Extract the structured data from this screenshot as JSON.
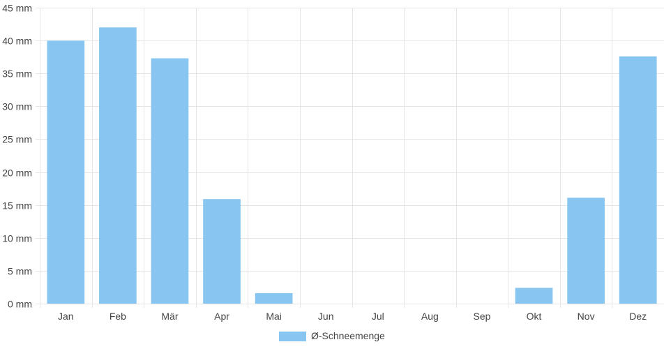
{
  "chart_data": {
    "type": "bar",
    "title": "",
    "xlabel": "",
    "ylabel": "",
    "unit": "mm",
    "categories": [
      "Jan",
      "Feb",
      "Mär",
      "Apr",
      "Mai",
      "Jun",
      "Jul",
      "Aug",
      "Sep",
      "Okt",
      "Nov",
      "Dez"
    ],
    "series": [
      {
        "name": "Ø-Schneemenge",
        "color": "#88c6f1",
        "values": [
          40.0,
          42.0,
          37.3,
          15.9,
          1.6,
          0,
          0,
          0,
          0,
          2.4,
          16.1,
          37.6
        ]
      }
    ],
    "ylim": [
      0,
      45
    ],
    "yticks": [
      {
        "value": 0,
        "label": "0 mm"
      },
      {
        "value": 5,
        "label": "5 mm"
      },
      {
        "value": 10,
        "label": "10 mm"
      },
      {
        "value": 15,
        "label": "15 mm"
      },
      {
        "value": 20,
        "label": "20 mm"
      },
      {
        "value": 25,
        "label": "25 mm"
      },
      {
        "value": 30,
        "label": "30 mm"
      },
      {
        "value": 35,
        "label": "35 mm"
      },
      {
        "value": 40,
        "label": "40 mm"
      },
      {
        "value": 45,
        "label": "45 mm"
      }
    ],
    "grid": true,
    "gridColor": "#e5e5e5",
    "legend": "bottom"
  }
}
